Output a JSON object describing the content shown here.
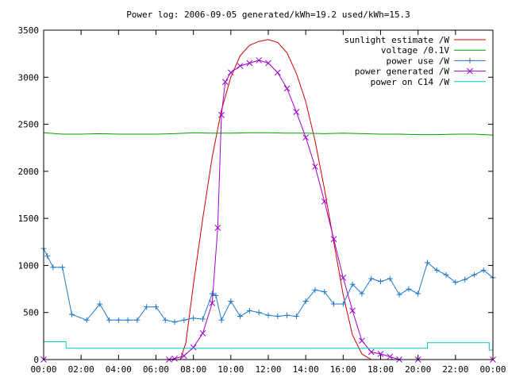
{
  "chart_data": {
    "type": "line",
    "title": "Power log: 2006-09-05 generated/kWh=19.2 used/kWh=15.3",
    "xlabel": "",
    "ylabel": "",
    "x_ticks": [
      "00:00",
      "02:00",
      "04:00",
      "06:00",
      "08:00",
      "10:00",
      "12:00",
      "14:00",
      "16:00",
      "18:00",
      "20:00",
      "22:00",
      "00:00"
    ],
    "xlim": [
      0,
      24
    ],
    "ylim": [
      0,
      3500
    ],
    "y_ticks": [
      0,
      500,
      1000,
      1500,
      2000,
      2500,
      3000,
      3500
    ],
    "grid": false,
    "legend_position": "top-right",
    "series": [
      {
        "name": "sunlight estimate /W",
        "color": "#cc0000",
        "marker": "none",
        "x": [
          0,
          7.3,
          7.6,
          8.0,
          8.5,
          9.0,
          9.5,
          10.0,
          10.5,
          11.0,
          11.5,
          12.0,
          12.5,
          13.0,
          13.5,
          14.0,
          14.5,
          15.0,
          15.5,
          16.0,
          16.5,
          17.0,
          17.5,
          18.0,
          18.5,
          19.0,
          24
        ],
        "y": [
          0,
          0,
          180,
          800,
          1500,
          2150,
          2650,
          3000,
          3230,
          3340,
          3380,
          3400,
          3370,
          3260,
          3040,
          2740,
          2320,
          1810,
          1250,
          690,
          260,
          60,
          0,
          0,
          0,
          0,
          0
        ]
      },
      {
        "name": "voltage /0.1V",
        "color": "#00a000",
        "marker": "none",
        "x": [
          0,
          1,
          2,
          3,
          4,
          5,
          6,
          7,
          8,
          9,
          10,
          11,
          12,
          13,
          14,
          15,
          16,
          17,
          18,
          19,
          20,
          21,
          22,
          23,
          24
        ],
        "y": [
          2410,
          2395,
          2395,
          2400,
          2395,
          2395,
          2395,
          2400,
          2410,
          2405,
          2405,
          2410,
          2410,
          2405,
          2405,
          2400,
          2405,
          2400,
          2395,
          2395,
          2390,
          2390,
          2395,
          2395,
          2385
        ]
      },
      {
        "name": "power use /W",
        "color": "#1e78c8",
        "marker": "plus",
        "x": [
          0.0,
          0.2,
          0.5,
          1.0,
          1.5,
          2.3,
          3.0,
          3.5,
          4.0,
          4.5,
          5.0,
          5.5,
          6.0,
          6.5,
          7.0,
          7.5,
          8.0,
          8.5,
          9.0,
          9.2,
          9.5,
          10.0,
          10.5,
          11.0,
          11.5,
          12.0,
          12.5,
          13.0,
          13.5,
          14.0,
          14.5,
          15.0,
          15.5,
          16.0,
          16.5,
          17.0,
          17.5,
          18.0,
          18.5,
          19.0,
          19.5,
          20.0,
          20.5,
          21.0,
          21.5,
          22.0,
          22.5,
          23.0,
          23.5,
          24.0
        ],
        "y": [
          1180,
          1100,
          980,
          980,
          480,
          420,
          590,
          420,
          420,
          420,
          420,
          560,
          560,
          420,
          400,
          420,
          440,
          430,
          700,
          680,
          420,
          620,
          460,
          520,
          500,
          470,
          460,
          470,
          460,
          620,
          740,
          720,
          590,
          590,
          800,
          700,
          860,
          830,
          860,
          690,
          750,
          700,
          1030,
          950,
          900,
          820,
          850,
          900,
          950,
          870
        ]
      },
      {
        "name": "power generated /W",
        "color": "#a000d0",
        "marker": "x",
        "x": [
          0,
          6.7,
          7.0,
          7.5,
          8.0,
          8.5,
          9.0,
          9.3,
          9.5,
          9.7,
          10.0,
          10.5,
          11.0,
          11.5,
          12.0,
          12.5,
          13.0,
          13.5,
          14.0,
          14.5,
          15.0,
          15.5,
          16.0,
          16.5,
          17.0,
          17.5,
          18.0,
          18.5,
          19.0,
          20.0,
          24
        ],
        "y": [
          0,
          0,
          10,
          40,
          130,
          280,
          600,
          1400,
          2600,
          2950,
          3050,
          3120,
          3150,
          3180,
          3150,
          3050,
          2880,
          2630,
          2360,
          2050,
          1680,
          1280,
          870,
          520,
          200,
          80,
          60,
          30,
          0,
          0,
          0
        ]
      },
      {
        "name": "power on C14 /W",
        "color": "#00c8c8",
        "marker": "none",
        "x": [
          0,
          1.2,
          1.2,
          20.5,
          20.5,
          23.8,
          23.8,
          24
        ],
        "y": [
          190,
          190,
          120,
          120,
          180,
          180,
          100,
          100
        ]
      }
    ]
  }
}
